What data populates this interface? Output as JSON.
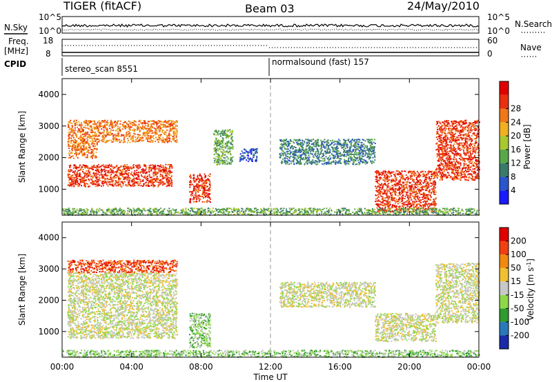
{
  "header": {
    "left_title": "TIGER (fitACF)",
    "center_title": "Beam 03",
    "right_title": "24/May/2010"
  },
  "top_panels": {
    "nsky": {
      "label": "N.Sky",
      "yticks_left": [
        "10^5",
        "10^0"
      ],
      "right_label": "N.Search",
      "yticks_right": [
        "10^5",
        "10^0"
      ]
    },
    "freq": {
      "label_line1": "Freq.",
      "label_line2": "[MHz]",
      "yticks_left": [
        "18",
        "8"
      ],
      "right_label": "Nave",
      "yticks_right": [
        "60",
        "0"
      ]
    },
    "cpid": {
      "label": "CPID",
      "segments": [
        {
          "text": "stereo_scan 8551",
          "start_hour": 0
        },
        {
          "text": "normalsound (fast) 157",
          "start_hour": 12
        }
      ]
    }
  },
  "x_axis": {
    "ticks": [
      "00:00",
      "04:00",
      "08:00",
      "12:00",
      "16:00",
      "20:00",
      "00:00"
    ],
    "tick_hours": [
      0,
      4,
      8,
      12,
      16,
      20,
      24
    ],
    "xlabel": "Time UT"
  },
  "chart_data": [
    {
      "type": "heatmap",
      "panel": "power",
      "ylabel": "Slant Range [km]",
      "yticks": [
        "1000",
        "2000",
        "3000",
        "4000"
      ],
      "ylim": [
        180,
        4500
      ],
      "xlim": [
        0,
        24
      ],
      "colorbar": {
        "label": "Power [dB]",
        "ticks": [
          "4",
          "8",
          "12",
          "16",
          "20",
          "24",
          "28"
        ],
        "colors": [
          "#1a1aff",
          "#2a55cc",
          "#3a7a6a",
          "#58a84a",
          "#a8c830",
          "#f0b020",
          "#f07818",
          "#e83010",
          "#e00000"
        ]
      },
      "regions": [
        {
          "t0": 0.3,
          "t1": 6.3,
          "r0": 1100,
          "r1": 1800,
          "level": 7
        },
        {
          "t0": 0.3,
          "t1": 6.6,
          "r0": 2500,
          "r1": 3200,
          "level": 6
        },
        {
          "t0": 0.3,
          "t1": 2.0,
          "r0": 2000,
          "r1": 2500,
          "level": 6
        },
        {
          "t0": 7.3,
          "t1": 8.5,
          "r0": 600,
          "r1": 1500,
          "level": 7
        },
        {
          "t0": 8.7,
          "t1": 9.8,
          "r0": 1800,
          "r1": 2900,
          "level": 3
        },
        {
          "t0": 10.2,
          "t1": 11.2,
          "r0": 1900,
          "r1": 2300,
          "level": 1
        },
        {
          "t0": 12.5,
          "t1": 18.0,
          "r0": 1800,
          "r1": 2600,
          "level": 2
        },
        {
          "t0": 18.0,
          "t1": 21.5,
          "r0": 300,
          "r1": 1600,
          "level": 7
        },
        {
          "t0": 21.5,
          "t1": 24.0,
          "r0": 1300,
          "r1": 3200,
          "level": 7
        },
        {
          "t0": 0.0,
          "t1": 24.0,
          "r0": 200,
          "r1": 420,
          "level": 3
        }
      ]
    },
    {
      "type": "heatmap",
      "panel": "velocity",
      "ylabel": "Slant Range [km]",
      "yticks": [
        "1000",
        "2000",
        "3000",
        "4000"
      ],
      "ylim": [
        180,
        4500
      ],
      "xlim": [
        0,
        24
      ],
      "colorbar": {
        "label": "Velocity [m s^-1]",
        "ticks": [
          "200",
          "100",
          "50",
          "15",
          "-15",
          "-50",
          "-100",
          "-200"
        ],
        "colors": [
          "#1a2aa8",
          "#2a78b8",
          "#2e9a30",
          "#8ed84a",
          "#c8c8c8",
          "#f0c030",
          "#f08a10",
          "#f04010",
          "#e00000"
        ]
      },
      "regions": [
        {
          "t0": 0.3,
          "t1": 6.6,
          "r0": 800,
          "r1": 2900,
          "level": 4
        },
        {
          "t0": 0.3,
          "t1": 6.6,
          "r0": 2900,
          "r1": 3300,
          "level": 7
        },
        {
          "t0": 7.3,
          "t1": 8.5,
          "r0": 500,
          "r1": 1600,
          "level": 3
        },
        {
          "t0": 12.5,
          "t1": 18.0,
          "r0": 1800,
          "r1": 2600,
          "level": 4
        },
        {
          "t0": 18.0,
          "t1": 21.5,
          "r0": 700,
          "r1": 1600,
          "level": 4
        },
        {
          "t0": 21.5,
          "t1": 24.0,
          "r0": 1300,
          "r1": 3200,
          "level": 4
        },
        {
          "t0": 0.0,
          "t1": 24.0,
          "r0": 200,
          "r1": 420,
          "level": 3
        }
      ]
    }
  ]
}
